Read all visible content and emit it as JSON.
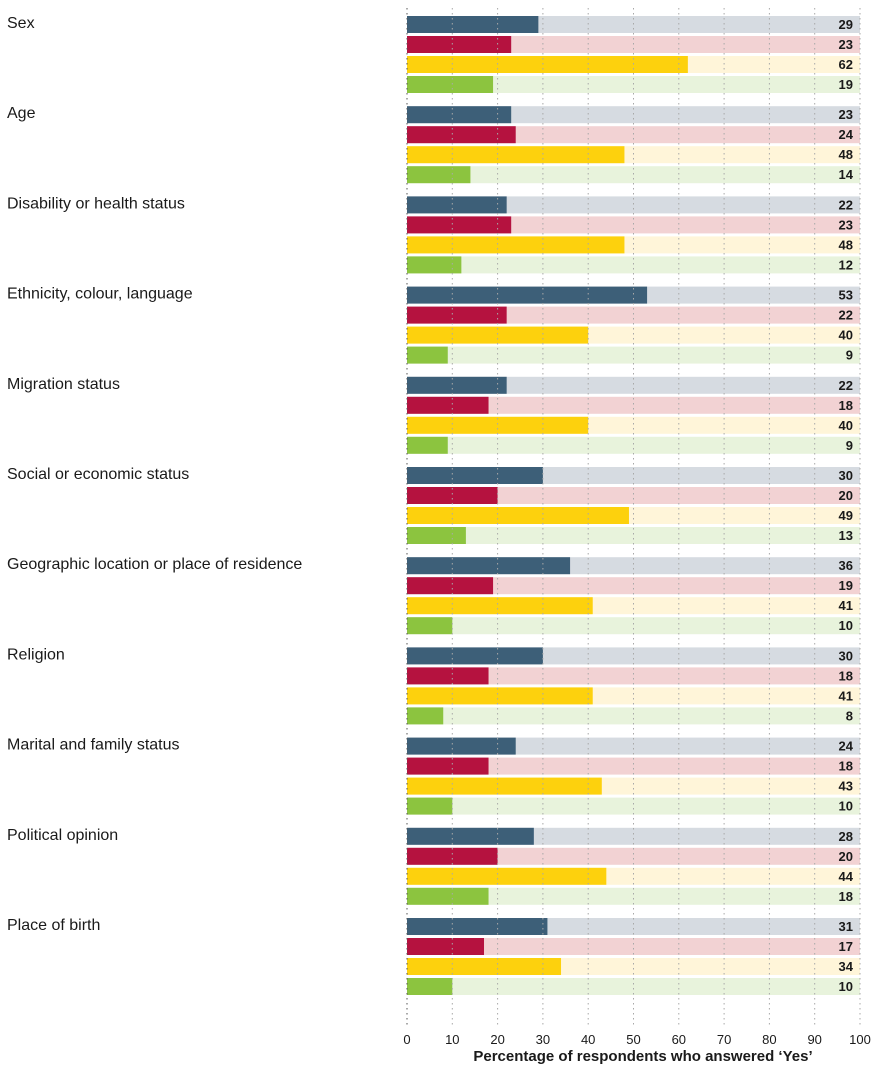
{
  "chart_data": {
    "type": "bar",
    "orientation": "horizontal",
    "xlabel": "Percentage of respondents who answered ‘Yes’",
    "xlim": [
      0,
      100
    ],
    "xticks": [
      0,
      10,
      20,
      30,
      40,
      50,
      60,
      70,
      80,
      90,
      100
    ],
    "grid": "vertical dotted",
    "categories": [
      "Sex",
      "Age",
      "Disability or health status",
      "Ethnicity, colour, language",
      "Migration status",
      "Social or economic status",
      "Geographic location or place of residence",
      "Religion",
      "Marital and family status",
      "Political opinion",
      "Place of birth"
    ],
    "series": [
      {
        "color": "#3d5f78",
        "track_color": "#d6dbe1",
        "values": [
          29,
          23,
          22,
          53,
          22,
          30,
          36,
          30,
          24,
          28,
          31
        ]
      },
      {
        "color": "#b5123f",
        "track_color": "#f2d2d3",
        "values": [
          23,
          24,
          23,
          22,
          18,
          20,
          19,
          18,
          18,
          20,
          17
        ]
      },
      {
        "color": "#fdd10d",
        "track_color": "#fff5d9",
        "values": [
          62,
          48,
          48,
          40,
          40,
          49,
          41,
          41,
          43,
          44,
          34
        ]
      },
      {
        "color": "#8cc43f",
        "track_color": "#e8f3dc",
        "values": [
          19,
          14,
          12,
          9,
          9,
          13,
          10,
          8,
          10,
          18,
          10
        ]
      }
    ]
  }
}
